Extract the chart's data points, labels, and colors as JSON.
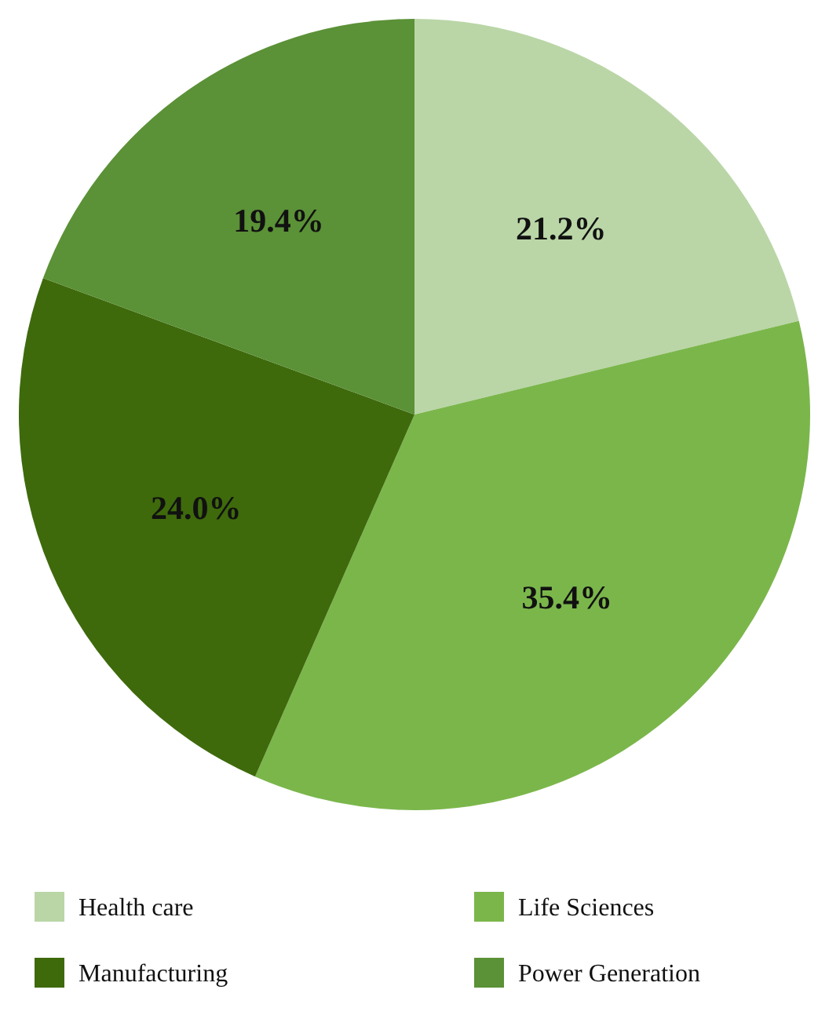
{
  "chart_data": {
    "type": "pie",
    "categories": [
      "Health care",
      "Life Sciences",
      "Manufacturing",
      "Power Generation"
    ],
    "values": [
      21.2,
      35.4,
      24.0,
      19.4
    ],
    "colors": [
      "#bad6a7",
      "#7bb64b",
      "#3e6a0c",
      "#5b9137"
    ],
    "value_labels": [
      "21.2%",
      "35.4%",
      "24.0%",
      "19.4%"
    ],
    "legend": "bottom"
  }
}
